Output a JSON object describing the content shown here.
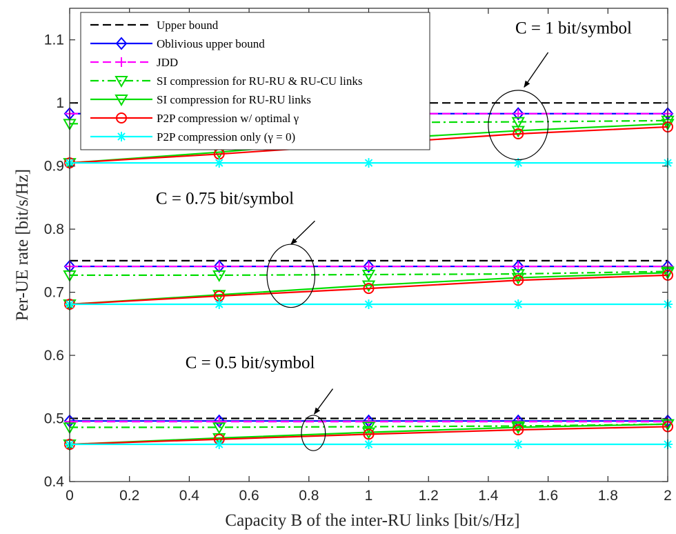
{
  "chart_data": {
    "type": "line",
    "xlabel": "Capacity B of the inter-RU links [bit/s/Hz]",
    "ylabel": "Per-UE rate [bit/s/Hz]",
    "xlim": [
      0,
      2
    ],
    "ylim": [
      0.4,
      1.15
    ],
    "xticks": [
      0,
      0.2,
      0.4,
      0.6,
      0.8,
      1,
      1.2,
      1.4,
      1.6,
      1.8,
      2
    ],
    "xtick_labels": [
      "0",
      "0.2",
      "0.4",
      "0.6",
      "0.8",
      "1",
      "1.2",
      "1.4",
      "1.6",
      "1.8",
      "2"
    ],
    "yticks": [
      0.4,
      0.5,
      0.6,
      0.7,
      0.8,
      0.9,
      1,
      1.1
    ],
    "ytick_labels": [
      "0.4",
      "0.5",
      "0.6",
      "0.7",
      "0.8",
      "0.9",
      "1",
      "1.1"
    ],
    "grid": false,
    "legend_position": "top-left",
    "x": [
      0,
      0.5,
      1,
      1.5,
      2
    ],
    "series": [
      {
        "name": "Upper bound",
        "color": "#000000",
        "style": "dashed",
        "marker": "none",
        "groups": [
          [
            1.0,
            1.0,
            1.0,
            1.0,
            1.0
          ],
          [
            0.75,
            0.75,
            0.75,
            0.75,
            0.75
          ],
          [
            0.5,
            0.5,
            0.5,
            0.5,
            0.5
          ]
        ]
      },
      {
        "name": "Oblivious upper bound",
        "color": "#0000ff",
        "style": "solid",
        "marker": "diamond",
        "groups": [
          [
            0.983,
            0.983,
            0.983,
            0.983,
            0.983
          ],
          [
            0.741,
            0.741,
            0.741,
            0.741,
            0.741
          ],
          [
            0.496,
            0.496,
            0.496,
            0.496,
            0.496
          ]
        ]
      },
      {
        "name": "JDD",
        "color": "#ff00ff",
        "style": "dashed",
        "marker": "plus",
        "groups": [
          [
            0.983,
            0.983,
            0.983,
            0.983,
            0.983
          ],
          [
            0.741,
            0.741,
            0.741,
            0.741,
            0.741
          ],
          [
            0.495,
            0.495,
            0.495,
            0.495,
            0.495
          ]
        ]
      },
      {
        "name": "SI compression for RU-RU & RU-CU links",
        "color": "#00dd00",
        "style": "dashdot",
        "marker": "triangle-down",
        "groups": [
          [
            0.967,
            0.968,
            0.969,
            0.97,
            0.972
          ],
          [
            0.727,
            0.727,
            0.728,
            0.729,
            0.733
          ],
          [
            0.486,
            0.486,
            0.487,
            0.488,
            0.491
          ]
        ]
      },
      {
        "name": "SI compression for RU-RU links",
        "color": "#00dd00",
        "style": "solid",
        "marker": "triangle-down",
        "groups": [
          [
            0.905,
            0.922,
            0.942,
            0.956,
            0.967
          ],
          [
            0.681,
            0.696,
            0.711,
            0.723,
            0.731
          ],
          [
            0.459,
            0.469,
            0.478,
            0.486,
            0.491
          ]
        ]
      },
      {
        "name": "P2P compression w/ optimal γ",
        "color": "#ff0000",
        "style": "solid",
        "marker": "circle",
        "groups": [
          [
            0.905,
            0.919,
            0.935,
            0.951,
            0.962
          ],
          [
            0.681,
            0.694,
            0.706,
            0.719,
            0.727
          ],
          [
            0.459,
            0.467,
            0.475,
            0.482,
            0.487
          ]
        ]
      },
      {
        "name": "P2P compression only (γ = 0)",
        "color": "#00ffff",
        "style": "solid",
        "marker": "asterisk",
        "groups": [
          [
            0.905,
            0.905,
            0.905,
            0.905,
            0.905
          ],
          [
            0.681,
            0.681,
            0.681,
            0.681,
            0.681
          ],
          [
            0.459,
            0.459,
            0.459,
            0.459,
            0.459
          ]
        ]
      }
    ],
    "annotations": [
      {
        "text": "C = 1 bit/symbol",
        "ellipse_center": [
          1.5,
          0.965
        ],
        "ellipse_rx": 0.1,
        "ellipse_ry": 0.055,
        "text_at": [
          1.88,
          1.11
        ],
        "arrow_from": [
          1.6,
          1.08
        ],
        "arrow_to": [
          1.52,
          1.025
        ]
      },
      {
        "text": "C = 0.75 bit/symbol",
        "ellipse_center": [
          0.74,
          0.726
        ],
        "ellipse_rx": 0.08,
        "ellipse_ry": 0.05,
        "text_at": [
          0.75,
          0.84
        ],
        "arrow_from": [
          0.82,
          0.813
        ],
        "arrow_to": [
          0.74,
          0.776
        ]
      },
      {
        "text": "C = 0.5 bit/symbol",
        "ellipse_center": [
          0.815,
          0.477
        ],
        "ellipse_rx": 0.04,
        "ellipse_ry": 0.028,
        "text_at": [
          0.82,
          0.58
        ],
        "arrow_from": [
          0.88,
          0.547
        ],
        "arrow_to": [
          0.818,
          0.507
        ]
      }
    ]
  }
}
